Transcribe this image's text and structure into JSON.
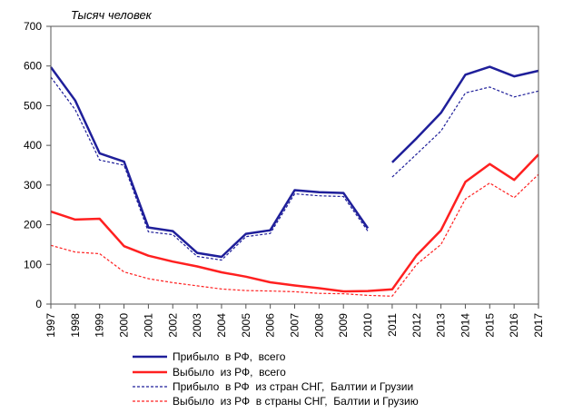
{
  "chart_data": {
    "type": "line",
    "ylabel": "Тысяч человек",
    "ylim": [
      0,
      700
    ],
    "yticks": [
      0,
      100,
      200,
      300,
      400,
      500,
      600,
      700
    ],
    "categories": [
      "1997",
      "1998",
      "1999",
      "2000",
      "2001",
      "2002",
      "2003",
      "2004",
      "2005",
      "2006",
      "2007",
      "2008",
      "2009",
      "2010",
      "2011",
      "2012",
      "2013",
      "2014",
      "2015",
      "2016",
      "2017"
    ],
    "grid": false,
    "legend_position": "bottom",
    "series": [
      {
        "name": "Прибыло  в РФ,  всего",
        "color": "#1f1f9a",
        "style": "solid",
        "width": 2.5,
        "values": [
          597,
          513,
          380,
          359,
          193,
          184,
          129,
          119,
          177,
          186,
          287,
          282,
          280,
          191,
          null,
          null,
          null,
          null,
          null,
          null,
          null
        ],
        "values2": [
          null,
          null,
          null,
          null,
          null,
          null,
          null,
          null,
          null,
          null,
          null,
          null,
          null,
          null,
          357,
          418,
          482,
          578,
          598,
          574,
          588
        ]
      },
      {
        "name": "Выбыло  из РФ,  всего",
        "color": "#ff2020",
        "style": "solid",
        "width": 2.5,
        "values": [
          233,
          213,
          215,
          146,
          122,
          107,
          95,
          80,
          69,
          55,
          47,
          40,
          32,
          33,
          37,
          123,
          186,
          308,
          353,
          313,
          377
        ]
      },
      {
        "name": "Прибыло  в РФ  из стран СНГ,  Балтии и Грузии",
        "color": "#1f1f9a",
        "style": "dashed",
        "width": 1.2,
        "values": [
          572,
          490,
          363,
          350,
          182,
          175,
          120,
          111,
          170,
          178,
          278,
          273,
          271,
          184,
          null,
          null,
          null,
          null,
          null,
          null,
          null
        ],
        "values2": [
          null,
          null,
          null,
          null,
          null,
          null,
          null,
          null,
          null,
          null,
          null,
          null,
          null,
          null,
          320,
          378,
          436,
          532,
          547,
          522,
          537
        ]
      },
      {
        "name": "Выбыло  из РФ  в страны СНГ,  Балтии и Грузию",
        "color": "#ff2020",
        "style": "dashed",
        "width": 1.2,
        "values": [
          148,
          131,
          127,
          81,
          64,
          54,
          46,
          38,
          34,
          33,
          31,
          27,
          26,
          22,
          20,
          100,
          150,
          265,
          305,
          268,
          327
        ]
      }
    ]
  }
}
